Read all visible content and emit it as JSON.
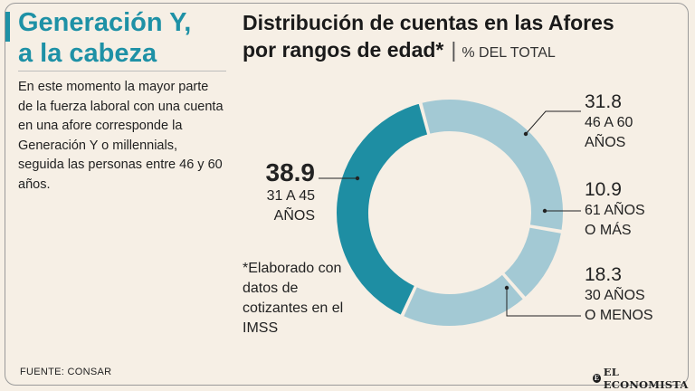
{
  "headline": {
    "line1": "Generación Y,",
    "line2": "a la cabeza"
  },
  "intro": "En este momento la mayor parte de la fuerza laboral con una cuenta en una afore corresponde la Generación Y o millennials, seguida las personas entre 46 y 60 años.",
  "chart_data": {
    "type": "pie",
    "title_line1": "Distribución de cuentas en las Afores",
    "title_line2": "por rangos de edad*",
    "unit": "% DEL TOTAL",
    "slices": [
      {
        "value": 31.8,
        "value_text": "31.8",
        "label_line1": "46 A 60",
        "label_line2": "AÑOS",
        "color": "#a3c9d4"
      },
      {
        "value": 10.9,
        "value_text": "10.9",
        "label_line1": "61 AÑOS",
        "label_line2": "O MÁS",
        "color": "#a3c9d4"
      },
      {
        "value": 18.3,
        "value_text": "18.3",
        "label_line1": "30 AÑOS",
        "label_line2": "O MENOS",
        "color": "#a3c9d4"
      },
      {
        "value": 38.9,
        "value_text": "38.9",
        "label_line1": "31 A 45",
        "label_line2": "AÑOS",
        "color": "#1e8ea3"
      }
    ],
    "footnote": "*Elaborado con datos de cotizantes en el IMSS"
  },
  "source": "FUENTE: CONSAR",
  "logo": {
    "text": "EL ECONOMISTA",
    "mark": "E"
  },
  "colors": {
    "accent": "#1e91a6",
    "background": "#f6efe5"
  }
}
